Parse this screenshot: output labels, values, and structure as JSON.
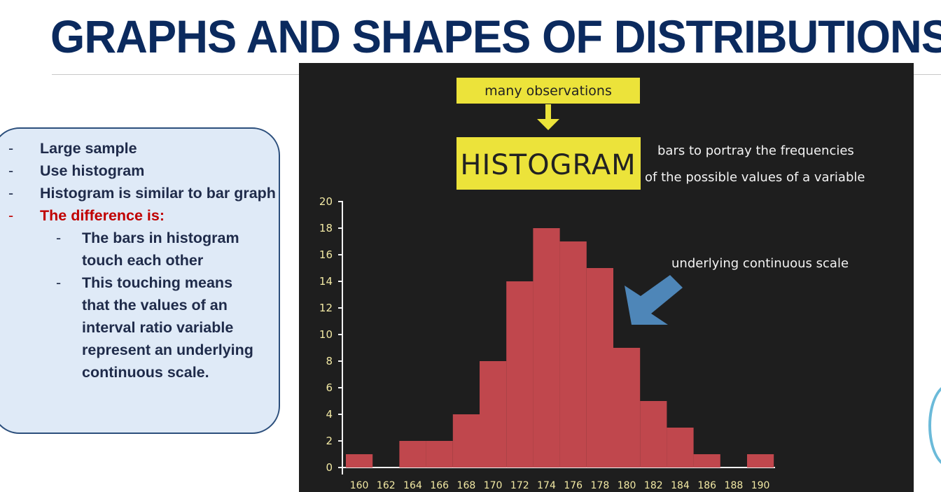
{
  "slide": {
    "title": "GRAPHS AND SHAPES OF DISTRIBUTIONS",
    "bullets": [
      {
        "text": "Large sample",
        "highlight": false
      },
      {
        "text": "Use histogram",
        "highlight": false
      },
      {
        "text": "Histogram is similar to bar graph",
        "highlight": false
      },
      {
        "text": "The difference is:",
        "highlight": true
      }
    ],
    "sub_bullets": [
      "The bars in histogram touch each other",
      "This touching means that the values of an interval ratio variable represent an underlying continuous scale."
    ],
    "colors": {
      "title": "#0b2a5e",
      "callout_bg": "#dfeaf7",
      "highlight": "#c00000"
    }
  },
  "annotations": {
    "top_label": "many observations",
    "main_label": "HISTOGRAM",
    "description_line1": "bars to portray the frequencies",
    "description_line2": "of the possible values of a variable",
    "arrow_note": "underlying continuous scale"
  },
  "chart_data": {
    "type": "bar",
    "categories": [
      "160",
      "162",
      "164",
      "166",
      "168",
      "170",
      "172",
      "174",
      "176",
      "178",
      "180",
      "182",
      "184",
      "186",
      "188",
      "190"
    ],
    "values": [
      1,
      0,
      2,
      2,
      4,
      8,
      14,
      18,
      17,
      15,
      9,
      5,
      3,
      1,
      0,
      1
    ],
    "y_ticks": [
      0,
      2,
      4,
      6,
      8,
      10,
      12,
      14,
      16,
      18,
      20
    ],
    "ylim": [
      0,
      20
    ],
    "bar_color": "#c0474d",
    "label_color": "#f2e9a4",
    "grid": false
  }
}
